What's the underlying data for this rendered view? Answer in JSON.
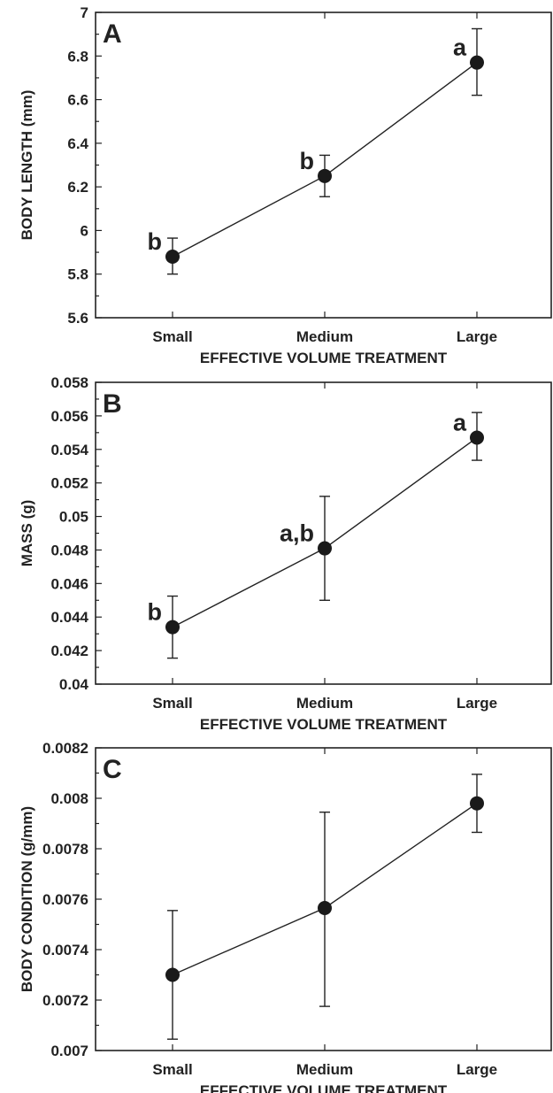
{
  "chart_data": [
    {
      "type": "line",
      "panel_label": "A",
      "categories": [
        "Small",
        "Medium",
        "Large"
      ],
      "values": [
        5.88,
        6.25,
        6.77
      ],
      "error_low": [
        5.8,
        6.155,
        6.62
      ],
      "error_high": [
        5.965,
        6.345,
        6.925
      ],
      "annotations": [
        "b",
        "b",
        "a"
      ],
      "xlabel": "EFFECTIVE VOLUME TREATMENT",
      "ylabel": "BODY LENGTH (mm)",
      "ylim": [
        5.6,
        7.0
      ],
      "yticks": [
        "5.6",
        "5.8",
        "6",
        "6.2",
        "6.4",
        "6.6",
        "6.8",
        "7"
      ],
      "grid": false
    },
    {
      "type": "line",
      "panel_label": "B",
      "categories": [
        "Small",
        "Medium",
        "Large"
      ],
      "values": [
        0.0434,
        0.0481,
        0.0547
      ],
      "error_low": [
        0.04155,
        0.045,
        0.05335
      ],
      "error_high": [
        0.04525,
        0.0512,
        0.0562
      ],
      "annotations": [
        "b",
        "a,b",
        "a"
      ],
      "xlabel": "EFFECTIVE VOLUME TREATMENT",
      "ylabel": "MASS (g)",
      "ylim": [
        0.04,
        0.058
      ],
      "yticks": [
        "0.04",
        "0.042",
        "0.044",
        "0.046",
        "0.048",
        "0.05",
        "0.052",
        "0.054",
        "0.056",
        "0.058"
      ],
      "grid": false
    },
    {
      "type": "line",
      "panel_label": "C",
      "categories": [
        "Small",
        "Medium",
        "Large"
      ],
      "values": [
        0.0073,
        0.007565,
        0.00798
      ],
      "error_low": [
        0.007045,
        0.007175,
        0.007865
      ],
      "error_high": [
        0.007555,
        0.007945,
        0.008095
      ],
      "annotations": [
        "",
        "",
        ""
      ],
      "xlabel": "EFFECTIVE VOLUME TREATMENT",
      "ylabel": "BODY CONDITION (g/mm)",
      "ylim": [
        0.007,
        0.0082
      ],
      "yticks": [
        "0.007",
        "0.0072",
        "0.0074",
        "0.0076",
        "0.0078",
        "0.008",
        "0.0082"
      ],
      "grid": false
    }
  ]
}
